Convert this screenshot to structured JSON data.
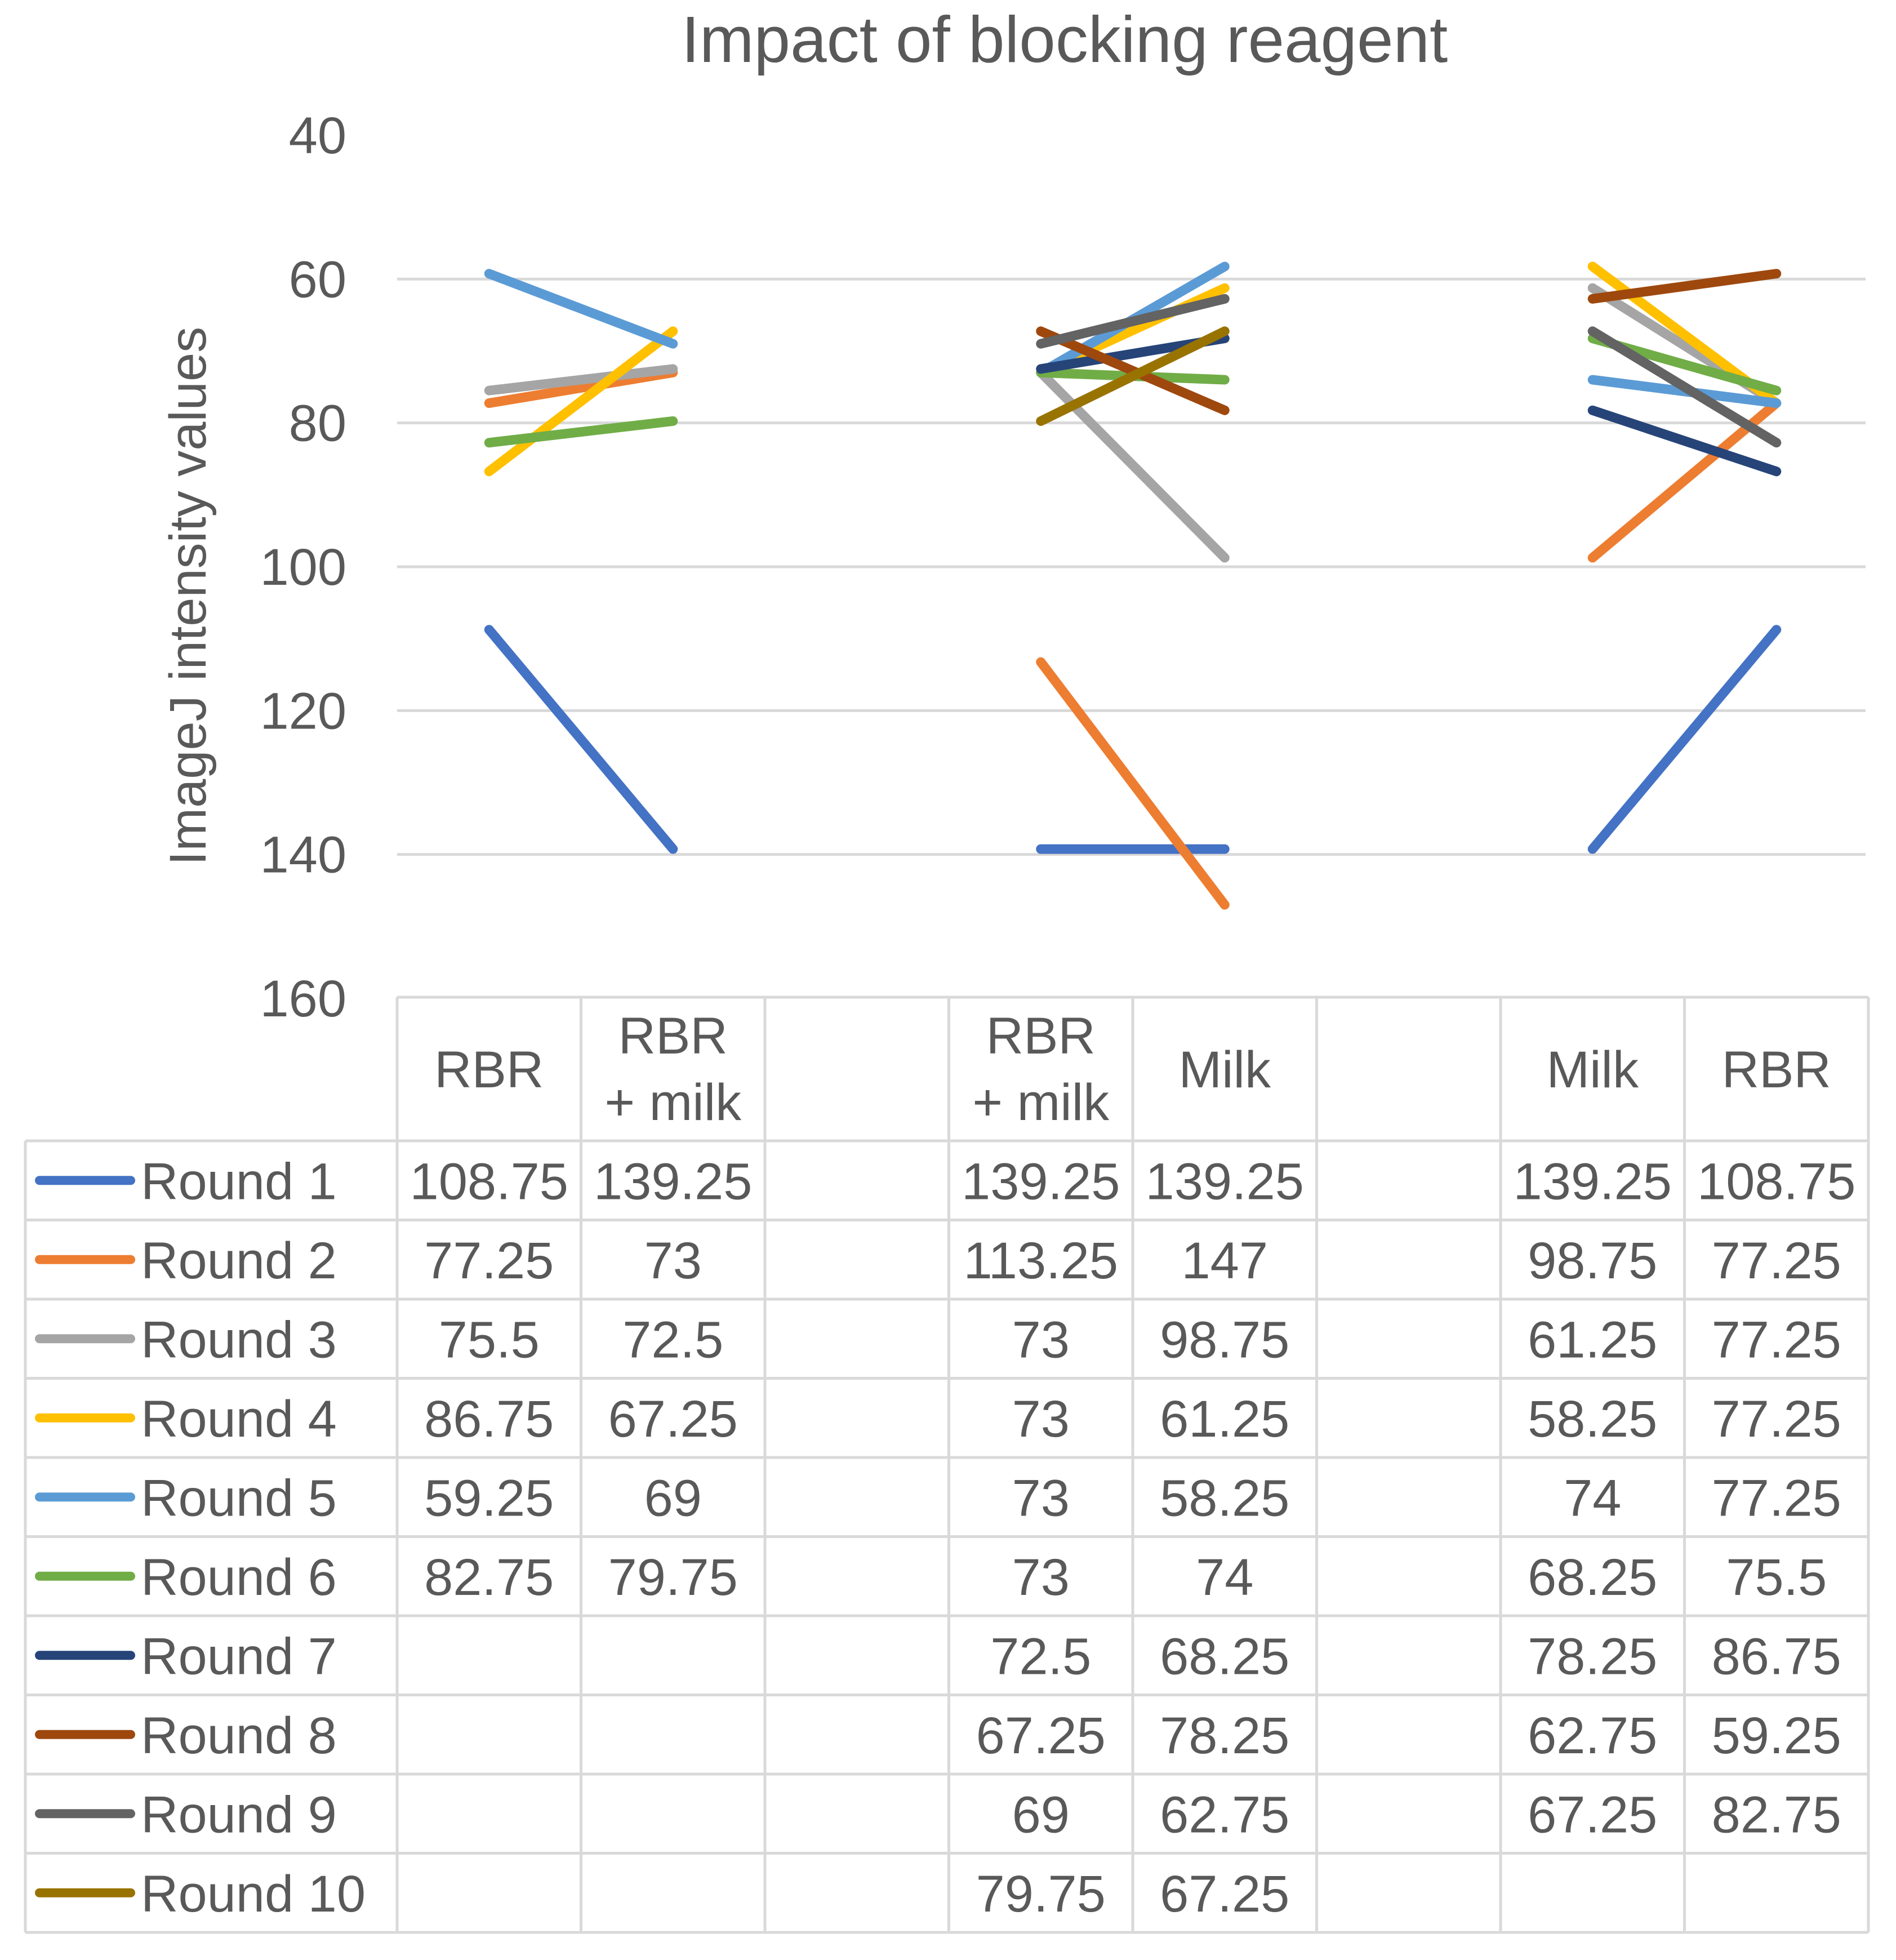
{
  "chart_data": {
    "type": "line",
    "title": "Impact of blocking reagent",
    "ylabel": "ImageJ intensity values",
    "xlabel": "",
    "y_reversed": true,
    "ylim": [
      40,
      160
    ],
    "yticks": [
      "40",
      "60",
      "80",
      "100",
      "120",
      "140",
      "160"
    ],
    "gridlines": true,
    "legend": "data-table",
    "categories": [
      "RBR",
      "RBR\n+ milk",
      "",
      "RBR\n+ milk",
      "Milk",
      "",
      "Milk",
      "RBR"
    ],
    "category_lines": [
      [
        "RBR"
      ],
      [
        "RBR",
        "+ milk"
      ],
      [],
      [
        "RBR",
        "+ milk"
      ],
      [
        "Milk"
      ],
      [],
      [
        "Milk"
      ],
      [
        "RBR"
      ]
    ],
    "series": [
      {
        "name": "Round 1",
        "color": "#4472C4",
        "values": [
          "108.75",
          "139.25",
          "",
          "139.25",
          "139.25",
          "",
          "139.25",
          "108.75"
        ]
      },
      {
        "name": "Round 2",
        "color": "#ED7D31",
        "values": [
          "77.25",
          "73",
          "",
          "113.25",
          "147",
          "",
          "98.75",
          "77.25"
        ]
      },
      {
        "name": "Round 3",
        "color": "#A5A5A5",
        "values": [
          "75.5",
          "72.5",
          "",
          "73",
          "98.75",
          "",
          "61.25",
          "77.25"
        ]
      },
      {
        "name": "Round 4",
        "color": "#FFC000",
        "values": [
          "86.75",
          "67.25",
          "",
          "73",
          "61.25",
          "",
          "58.25",
          "77.25"
        ]
      },
      {
        "name": "Round 5",
        "color": "#5B9BD5",
        "values": [
          "59.25",
          "69",
          "",
          "73",
          "58.25",
          "",
          "74",
          "77.25"
        ]
      },
      {
        "name": "Round 6",
        "color": "#70AD47",
        "values": [
          "82.75",
          "79.75",
          "",
          "73",
          "74",
          "",
          "68.25",
          "75.5"
        ]
      },
      {
        "name": "Round 7",
        "color": "#264478",
        "values": [
          "",
          "",
          "",
          "72.5",
          "68.25",
          "",
          "78.25",
          "86.75"
        ]
      },
      {
        "name": "Round 8",
        "color": "#9E480E",
        "values": [
          "",
          "",
          "",
          "67.25",
          "78.25",
          "",
          "62.75",
          "59.25"
        ]
      },
      {
        "name": "Round 9",
        "color": "#636363",
        "values": [
          "",
          "",
          "",
          "69",
          "62.75",
          "",
          "67.25",
          "82.75"
        ]
      },
      {
        "name": "Round 10",
        "color": "#997300",
        "values": [
          "",
          "",
          "",
          "79.75",
          "67.25",
          "",
          "",
          ""
        ]
      }
    ]
  }
}
